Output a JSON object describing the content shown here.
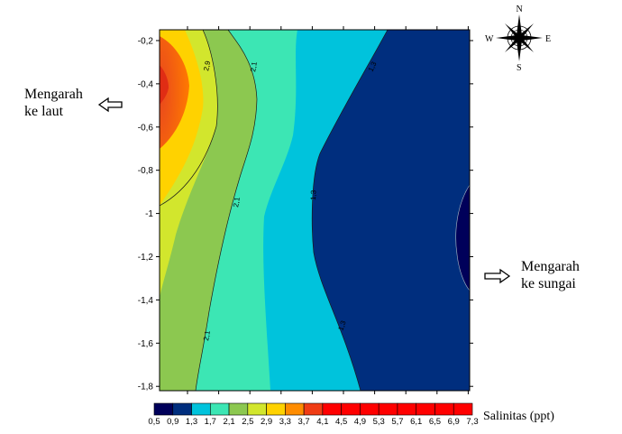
{
  "chart_data": {
    "type": "contour",
    "y_ticks": [
      "-0,2",
      "-0,4",
      "-0,6",
      "-0,8",
      "-1",
      "-1,2",
      "-1,4",
      "-1,6",
      "-1,8"
    ],
    "y_values": [
      -0.2,
      -0.4,
      -0.6,
      -0.8,
      -1.0,
      -1.2,
      -1.4,
      -1.6,
      -1.8
    ],
    "ylim": [
      -1.82,
      -0.15
    ],
    "colorbar": {
      "label": "Salinitas (ppt)",
      "tick_labels": [
        "0,5",
        "0,9",
        "1,3",
        "1,7",
        "2,1",
        "2,5",
        "2,9",
        "3,3",
        "3,7",
        "4,1",
        "4,5",
        "4,9",
        "5,3",
        "5,7",
        "6,1",
        "6,5",
        "6,9",
        "7,3"
      ],
      "levels": [
        0.5,
        0.9,
        1.3,
        1.7,
        2.1,
        2.5,
        2.9,
        3.3,
        3.7,
        4.1,
        4.5,
        4.9,
        5.3,
        5.7,
        6.1,
        6.5,
        6.9,
        7.3
      ],
      "colors": [
        "#00005a",
        "#002e7e",
        "#00c3dc",
        "#3ce6b4",
        "#8cc850",
        "#d2e62d",
        "#ffd200",
        "#ff8c00",
        "#f03c14",
        "#ff0000",
        "#ff0000",
        "#ff0000",
        "#ff0000",
        "#ff0000",
        "#ff0000",
        "#ff0000",
        "#ff0000"
      ]
    },
    "contour_labels": [
      "2,9",
      "2,1",
      "2,1",
      "2,1",
      "1,3",
      "1,3",
      "1,3"
    ]
  },
  "labels": {
    "left": "Mengarah\nke laut",
    "right": "Mengarah\nke sungai"
  },
  "compass": {
    "n": "N",
    "s": "S",
    "e": "E",
    "w": "W"
  },
  "colors": {
    "frame": "#000000",
    "arrow_stroke": "#000000"
  }
}
